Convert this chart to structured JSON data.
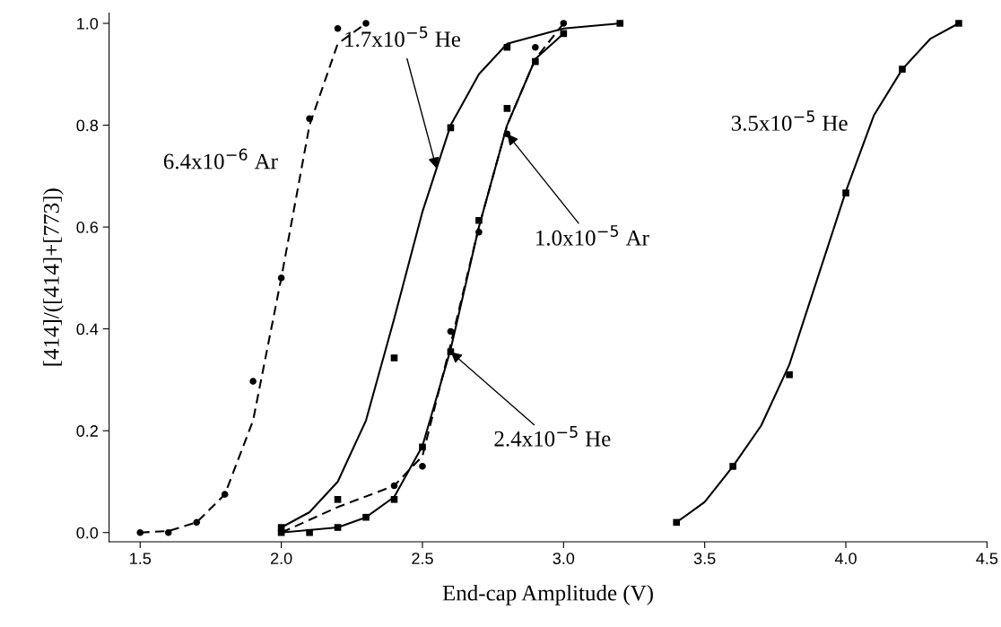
{
  "chart_data": {
    "type": "scatter",
    "xlabel": "End-cap Amplitude (V)",
    "ylabel": "[414]/([414]+[773])",
    "xlim": [
      1.39,
      4.5
    ],
    "ylim": [
      -0.018,
      1.02
    ],
    "xticks": [
      {
        "value": 1.5,
        "label": "1.5"
      },
      {
        "value": 2.0,
        "label": "2.0"
      },
      {
        "value": 2.5,
        "label": "2.5"
      },
      {
        "value": 3.0,
        "label": "3.0"
      },
      {
        "value": 3.5,
        "label": "3.5"
      },
      {
        "value": 4.0,
        "label": "4.0"
      },
      {
        "value": 4.5,
        "label": "4.5"
      }
    ],
    "yticks": [
      {
        "value": 0,
        "label": "0.0"
      },
      {
        "value": 0.2,
        "label": "0.2"
      },
      {
        "value": 0.4,
        "label": "0.4"
      },
      {
        "value": 0.6,
        "label": "0.6"
      },
      {
        "value": 0.8,
        "label": "0.8"
      },
      {
        "value": 1.0,
        "label": "1.0"
      }
    ],
    "grid": false,
    "legend": false,
    "series": [
      {
        "marker": "circle",
        "color": "#000000",
        "x": [
          1.5,
          1.6,
          1.7,
          1.8,
          1.9,
          2.0,
          2.1,
          2.2,
          2.3
        ],
        "values": [
          0,
          0,
          0.02,
          0.075,
          0.297,
          0.5,
          0.813,
          0.99,
          1.0
        ]
      },
      {
        "type": "line",
        "marker": "none",
        "line_style": "dashed",
        "color": "#000000",
        "x": [
          1.5,
          1.6,
          1.7,
          1.8,
          1.9,
          2.0,
          2.1,
          2.2,
          2.3
        ],
        "values": [
          0,
          0.003,
          0.02,
          0.075,
          0.22,
          0.5,
          0.8,
          0.96,
          1.0
        ]
      },
      {
        "marker": "square",
        "color": "#000000",
        "x": [
          2.0,
          2.2,
          2.4,
          2.6,
          2.8,
          3.2
        ],
        "values": [
          0.01,
          0.065,
          0.343,
          0.795,
          0.953,
          1.0
        ]
      },
      {
        "type": "line",
        "marker": "none",
        "line_style": "solid",
        "color": "#000000",
        "x": [
          2.0,
          2.1,
          2.2,
          2.3,
          2.4,
          2.5,
          2.6,
          2.7,
          2.8,
          3.0,
          3.2
        ],
        "values": [
          0.01,
          0.04,
          0.1,
          0.22,
          0.42,
          0.63,
          0.8,
          0.9,
          0.96,
          0.99,
          1.0
        ]
      },
      {
        "marker": "square",
        "color": "#000000",
        "x": [
          2.0,
          2.1,
          2.2,
          2.3,
          2.4,
          2.5,
          2.6,
          2.7,
          2.8,
          2.9,
          3.0
        ],
        "values": [
          0.0,
          0.0,
          0.01,
          0.03,
          0.065,
          0.168,
          0.355,
          0.613,
          0.833,
          0.925,
          0.98
        ]
      },
      {
        "type": "line",
        "marker": "none",
        "line_style": "solid",
        "color": "#000000",
        "x": [
          2.0,
          2.2,
          2.3,
          2.4,
          2.5,
          2.6,
          2.7,
          2.8,
          2.9,
          3.0
        ],
        "values": [
          0.0,
          0.01,
          0.03,
          0.07,
          0.17,
          0.36,
          0.6,
          0.8,
          0.93,
          0.98
        ]
      },
      {
        "marker": "circle",
        "color": "#000000",
        "x": [
          2.4,
          2.5,
          2.6,
          2.7,
          2.8,
          2.9,
          3.0
        ],
        "values": [
          0.092,
          0.13,
          0.395,
          0.59,
          0.783,
          0.953,
          1.0
        ]
      },
      {
        "type": "line",
        "marker": "none",
        "line_style": "dashed",
        "color": "#000000",
        "x": [
          2.0,
          2.2,
          2.4,
          2.5,
          2.6,
          2.7,
          2.8,
          2.9,
          3.0
        ],
        "values": [
          0.0,
          0.05,
          0.092,
          0.15,
          0.37,
          0.6,
          0.8,
          0.93,
          1.0
        ]
      },
      {
        "marker": "square",
        "color": "#000000",
        "x": [
          3.4,
          3.6,
          3.8,
          4.0,
          4.2,
          4.4
        ],
        "values": [
          0.02,
          0.13,
          0.31,
          0.667,
          0.91,
          1.0
        ]
      },
      {
        "type": "line",
        "marker": "none",
        "line_style": "solid",
        "color": "#000000",
        "x": [
          3.4,
          3.5,
          3.6,
          3.7,
          3.8,
          3.9,
          4.0,
          4.1,
          4.2,
          4.3,
          4.4
        ],
        "values": [
          0.02,
          0.06,
          0.13,
          0.21,
          0.33,
          0.5,
          0.67,
          0.82,
          0.91,
          0.97,
          1.0
        ]
      }
    ],
    "annotations": [
      "6.4x10$^{−6}$ Ar",
      {
        "text": "1.7x10$^{−5}$ He",
        "x": 2.55,
        "y": 0.715
      },
      {
        "text": "1.0x10$^{−5}$ Ar",
        "x": 2.8,
        "y": 0.783
      },
      {
        "text": "2.4x10$^{−5}$ He",
        "x": 2.6,
        "y": 0.355
      },
      "3.5x10$^{−5}$ He"
    ]
  }
}
